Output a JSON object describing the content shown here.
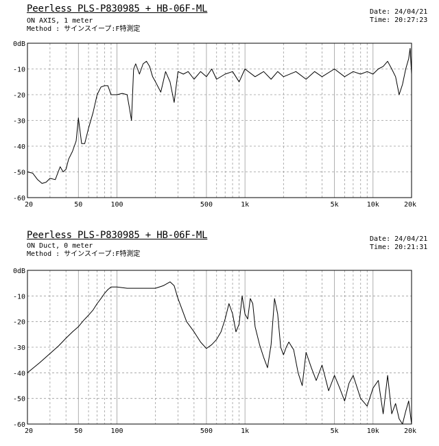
{
  "charts": [
    {
      "title": "Peerless PLS-P830985 + HB-06F-ML",
      "condition": "ON AXIS, 1 meter",
      "method": "Method : サインスイープ:F特測定",
      "date": "Date: 24/04/21",
      "time": "Time: 20:27:23"
    },
    {
      "title": "Peerless PLS-P830985 + HB-06F-ML",
      "condition": "ON Duct, 0 meter",
      "method": "Method : サインスイープ:F特測定",
      "date": "Date: 24/04/21",
      "time": "Time: 20:21:31"
    }
  ],
  "chart_data": [
    {
      "type": "line",
      "xscale": "log",
      "xlim": [
        20,
        20000
      ],
      "ylim": [
        -60,
        0
      ],
      "grid": true,
      "x_ticks": [
        "20",
        "50",
        "100",
        "500",
        "1k",
        "5k",
        "10k",
        "20k"
      ],
      "y_ticks": [
        "0dB",
        "-10",
        "-20",
        "-30",
        "-40",
        "-50",
        "-60"
      ],
      "x": [
        20,
        22,
        24,
        26,
        28,
        30,
        33,
        36,
        38,
        40,
        42,
        45,
        48,
        50,
        53,
        56,
        60,
        65,
        70,
        75,
        80,
        85,
        90,
        100,
        110,
        120,
        125,
        130,
        135,
        140,
        150,
        160,
        170,
        180,
        190,
        200,
        220,
        240,
        260,
        280,
        300,
        330,
        360,
        400,
        450,
        500,
        550,
        600,
        700,
        800,
        900,
        1000,
        1200,
        1400,
        1600,
        1800,
        2000,
        2500,
        3000,
        3500,
        4000,
        5000,
        6000,
        7000,
        8000,
        9000,
        10000,
        11000,
        12000,
        13000,
        14000,
        15000,
        16000,
        17000,
        18000,
        19000,
        19500,
        20000
      ],
      "y": [
        -50,
        -50.5,
        -53,
        -54.5,
        -54,
        -52.5,
        -53,
        -48,
        -50,
        -49,
        -45,
        -42,
        -38,
        -29,
        -39,
        -39,
        -33,
        -27,
        -20,
        -17,
        -16.5,
        -16.5,
        -20,
        -20,
        -19.5,
        -20,
        -25,
        -30,
        -10,
        -8,
        -12,
        -8,
        -7,
        -9,
        -13,
        -15,
        -19,
        -11,
        -15,
        -23,
        -11,
        -12,
        -11,
        -14,
        -11,
        -13,
        -10,
        -14,
        -12,
        -11,
        -15,
        -10,
        -13,
        -11,
        -14,
        -11,
        -13,
        -11,
        -14,
        -11,
        -13,
        -10,
        -13,
        -11,
        -12,
        -11,
        -12,
        -10,
        -9,
        -7,
        -10,
        -13,
        -20,
        -16,
        -10,
        -6,
        -2,
        -12
      ]
    },
    {
      "type": "line",
      "xscale": "log",
      "xlim": [
        20,
        20000
      ],
      "ylim": [
        -60,
        0
      ],
      "grid": true,
      "x_ticks": [
        "20",
        "50",
        "100",
        "500",
        "1k",
        "5k",
        "10k",
        "20k"
      ],
      "y_ticks": [
        "0dB",
        "-10",
        "-20",
        "-30",
        "-40",
        "-50",
        "-60"
      ],
      "x": [
        20,
        25,
        30,
        35,
        40,
        45,
        50,
        55,
        60,
        65,
        70,
        75,
        80,
        85,
        90,
        100,
        120,
        150,
        200,
        230,
        260,
        280,
        300,
        350,
        400,
        450,
        500,
        550,
        600,
        650,
        700,
        750,
        800,
        850,
        900,
        950,
        1000,
        1050,
        1100,
        1150,
        1200,
        1300,
        1400,
        1500,
        1600,
        1700,
        1800,
        1900,
        2000,
        2100,
        2200,
        2400,
        2600,
        2800,
        3000,
        3300,
        3600,
        4000,
        4500,
        5000,
        5500,
        6000,
        6500,
        7000,
        8000,
        9000,
        10000,
        11000,
        12000,
        13000,
        14000,
        15000,
        16000,
        17000,
        18000,
        19000,
        20000
      ],
      "y": [
        -40,
        -36,
        -32.5,
        -29.5,
        -26.5,
        -24,
        -22,
        -19.5,
        -17.5,
        -15.5,
        -13,
        -11,
        -9,
        -7.5,
        -6.5,
        -6.5,
        -7,
        -7,
        -7,
        -6,
        -4.5,
        -6,
        -11,
        -20,
        -24,
        -28,
        -30.5,
        -29,
        -27,
        -24,
        -19,
        -13,
        -17,
        -24,
        -21,
        -10,
        -17,
        -19,
        -11,
        -13,
        -22,
        -29,
        -34,
        -38,
        -29,
        -11,
        -17,
        -30,
        -33,
        -30,
        -28,
        -31,
        -40,
        -45,
        -32,
        -38,
        -43,
        -37,
        -47,
        -41,
        -46,
        -51,
        -44,
        -41,
        -50,
        -53,
        -46,
        -43,
        -56,
        -41,
        -56,
        -52,
        -58,
        -60,
        -55,
        -51,
        -60
      ]
    }
  ]
}
